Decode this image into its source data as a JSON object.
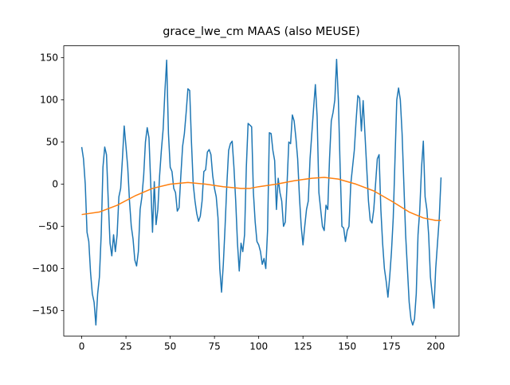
{
  "chart_data": {
    "type": "line",
    "title": "grace_lwe_cm MAAS (also MEUSE)",
    "xlim": [
      -10.15,
      213.15
    ],
    "ylim": [
      -180,
      164
    ],
    "xticks": [
      0,
      25,
      50,
      75,
      100,
      125,
      150,
      175,
      200
    ],
    "yticks": [
      {
        "value": -150,
        "label": "−150"
      },
      {
        "value": -100,
        "label": "−100"
      },
      {
        "value": -50,
        "label": "−50"
      },
      0,
      50,
      100,
      150
    ],
    "series": [
      {
        "color": "#1f77b4",
        "x": [
          0,
          1,
          2,
          3,
          4,
          5,
          6,
          7,
          8,
          9,
          10,
          11,
          12,
          13,
          14,
          15,
          16,
          17,
          18,
          19,
          20,
          21,
          22,
          23,
          24,
          25,
          26,
          27,
          28,
          29,
          30,
          31,
          32,
          33,
          34,
          35,
          36,
          37,
          38,
          39,
          40,
          41,
          42,
          43,
          44,
          45,
          46,
          47,
          48,
          49,
          50,
          51,
          52,
          53,
          54,
          55,
          56,
          57,
          58,
          59,
          60,
          61,
          62,
          63,
          64,
          65,
          66,
          67,
          68,
          69,
          70,
          71,
          72,
          73,
          74,
          75,
          76,
          77,
          78,
          79,
          80,
          81,
          82,
          83,
          84,
          85,
          86,
          87,
          88,
          89,
          90,
          91,
          92,
          93,
          94,
          95,
          96,
          97,
          98,
          99,
          100,
          101,
          102,
          103,
          104,
          105,
          106,
          107,
          108,
          109,
          110,
          111,
          112,
          113,
          114,
          115,
          116,
          117,
          118,
          119,
          120,
          121,
          122,
          123,
          124,
          125,
          126,
          127,
          128,
          129,
          130,
          131,
          132,
          133,
          134,
          135,
          136,
          137,
          138,
          139,
          140,
          141,
          142,
          143,
          144,
          145,
          146,
          147,
          148,
          149,
          150,
          151,
          152,
          153,
          154,
          155,
          156,
          157,
          158,
          159,
          160,
          161,
          162,
          163,
          164,
          165,
          166,
          167,
          168,
          169,
          170,
          171,
          172,
          173,
          174,
          175,
          176,
          177,
          178,
          179,
          180,
          181,
          182,
          183,
          184,
          185,
          186,
          187,
          188,
          189,
          190,
          191,
          192,
          193,
          194,
          195,
          196,
          197,
          198,
          199,
          200,
          201,
          202,
          203
        ],
        "values": [
          44,
          30,
          0,
          -57,
          -68,
          -105,
          -130,
          -140,
          -167,
          -130,
          -110,
          -60,
          20,
          44,
          35,
          -20,
          -70,
          -85,
          -60,
          -80,
          -60,
          -15,
          -5,
          30,
          69,
          45,
          20,
          -20,
          -50,
          -65,
          -90,
          -97,
          -80,
          -30,
          -15,
          10,
          50,
          67,
          55,
          0,
          -57,
          3,
          -48,
          -30,
          10,
          40,
          65,
          110,
          147,
          60,
          20,
          15,
          -5,
          -10,
          -32,
          -28,
          10,
          45,
          60,
          85,
          113,
          111,
          50,
          0,
          -20,
          -35,
          -44,
          -38,
          -20,
          15,
          17,
          38,
          41,
          35,
          10,
          -5,
          -15,
          -40,
          -100,
          -128,
          -95,
          -50,
          0,
          40,
          48,
          51,
          20,
          -20,
          -70,
          -103,
          -70,
          -80,
          -60,
          20,
          72,
          70,
          68,
          -10,
          -45,
          -68,
          -72,
          -80,
          -95,
          -88,
          -100,
          -55,
          61,
          60,
          40,
          28,
          -30,
          7,
          -10,
          -20,
          -50,
          -45,
          0,
          50,
          48,
          82,
          75,
          55,
          30,
          -15,
          -50,
          -72,
          -50,
          -30,
          -20,
          30,
          60,
          90,
          118,
          80,
          -10,
          -30,
          -50,
          -55,
          -25,
          -30,
          30,
          75,
          85,
          100,
          148,
          100,
          20,
          -50,
          -52,
          -68,
          -55,
          -50,
          0,
          20,
          40,
          75,
          105,
          102,
          63,
          99,
          60,
          20,
          -20,
          -43,
          -46,
          -30,
          0,
          30,
          35,
          -30,
          -70,
          -100,
          -115,
          -134,
          -110,
          -80,
          -40,
          30,
          100,
          114,
          100,
          60,
          0,
          -60,
          -100,
          -140,
          -160,
          -167,
          -160,
          -130,
          -60,
          -30,
          20,
          51,
          -15,
          -30,
          -60,
          -110,
          -130,
          -147,
          -100,
          -70,
          -40,
          8
        ]
      },
      {
        "color": "#ff7f0e",
        "x": [
          0,
          10,
          20,
          30,
          40,
          50,
          60,
          70,
          80,
          90,
          95,
          100,
          110,
          120,
          130,
          137,
          145,
          155,
          165,
          175,
          185,
          193,
          200,
          203
        ],
        "values": [
          -36,
          -33,
          -25,
          -14,
          -5,
          0,
          2,
          0,
          -3,
          -5,
          -5,
          -3,
          0,
          4,
          7,
          8,
          6,
          0,
          -8,
          -20,
          -33,
          -40,
          -43,
          -43
        ]
      }
    ]
  }
}
